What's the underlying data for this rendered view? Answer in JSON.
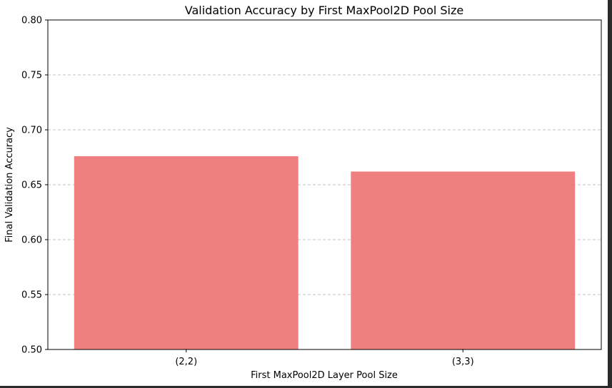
{
  "chart_data": {
    "type": "bar",
    "title": "Validation Accuracy by First MaxPool2D Pool Size",
    "xlabel": "First MaxPool2D Layer Pool Size",
    "ylabel": "Final Validation Accuracy",
    "categories": [
      "(2,2)",
      "(3,3)"
    ],
    "values": [
      0.676,
      0.662
    ],
    "ylim": [
      0.5,
      0.8
    ],
    "yticks": [
      "0.50",
      "0.55",
      "0.60",
      "0.65",
      "0.70",
      "0.75",
      "0.80"
    ],
    "grid": "y-axis dashed",
    "bar_color": "#f08080"
  }
}
